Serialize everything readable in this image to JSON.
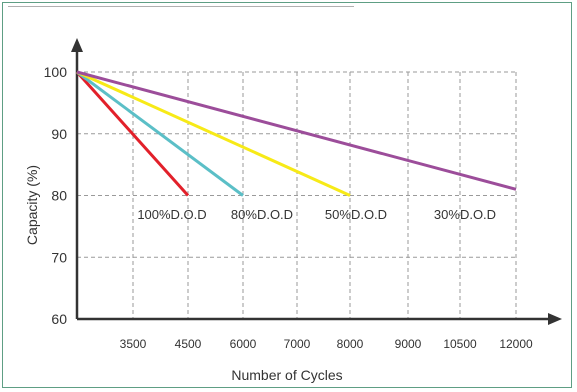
{
  "chart_data": {
    "type": "line",
    "title": "",
    "xlabel": "Number of Cycles",
    "ylabel": "Capacity (%)",
    "x_ticks": [
      "3500",
      "4500",
      "6000",
      "7000",
      "8000",
      "9000",
      "10500",
      "12000"
    ],
    "y_ticks": [
      "60",
      "70",
      "80",
      "90",
      "100"
    ],
    "ylim": [
      60,
      100
    ],
    "grid": true,
    "series": [
      {
        "name": "100%D.O.D",
        "color": "#e2202a",
        "points": [
          {
            "x": "0",
            "y": 100
          },
          {
            "x": "4500",
            "y": 80
          }
        ]
      },
      {
        "name": "80%D.O.D",
        "color": "#5bbfc7",
        "points": [
          {
            "x": "0",
            "y": 100
          },
          {
            "x": "6000",
            "y": 80
          }
        ]
      },
      {
        "name": "50%D.O.D",
        "color": "#f7ea17",
        "points": [
          {
            "x": "0",
            "y": 100
          },
          {
            "x": "8000",
            "y": 80
          }
        ]
      },
      {
        "name": "30%D.O.D",
        "color": "#9c4d9a",
        "points": [
          {
            "x": "0",
            "y": 100
          },
          {
            "x": "12000",
            "y": 81
          }
        ]
      }
    ]
  }
}
